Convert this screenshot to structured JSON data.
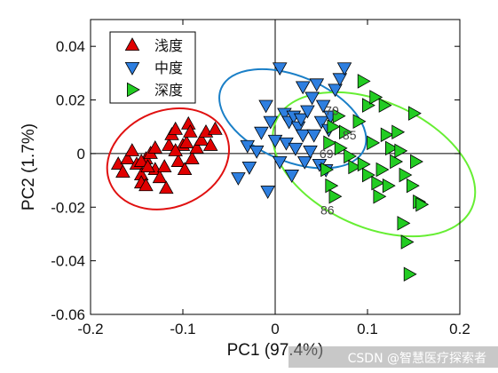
{
  "chart_data": {
    "type": "scatter",
    "xlabel": "PC1 (97.4%)",
    "ylabel": "PC2 (1.7%)",
    "xlim": [
      -0.2,
      0.2
    ],
    "ylim": [
      -0.06,
      0.05
    ],
    "xticks": [
      "-0.2",
      "-0.1",
      "0",
      "0.1",
      "0.2"
    ],
    "yticks": [
      "-0.06",
      "-0.04",
      "-0.02",
      "0",
      "0.02",
      "0.04"
    ],
    "zero_lines": true,
    "legend_position": "top-left",
    "series": [
      {
        "name": "浅度",
        "marker": "triangle-up",
        "color": "#e00000",
        "points": [
          [
            -0.17,
            -0.004
          ],
          [
            -0.165,
            -0.007
          ],
          [
            -0.16,
            -0.002
          ],
          [
            -0.155,
            0.001
          ],
          [
            -0.15,
            -0.004
          ],
          [
            -0.145,
            -0.008
          ],
          [
            -0.14,
            -0.002
          ],
          [
            -0.145,
            -0.011
          ],
          [
            -0.14,
            -0.012
          ],
          [
            -0.135,
            0.0
          ],
          [
            -0.13,
            0.002
          ],
          [
            -0.13,
            -0.006
          ],
          [
            -0.125,
            -0.009
          ],
          [
            -0.12,
            -0.005
          ],
          [
            -0.115,
            0.003
          ],
          [
            -0.112,
            0.007
          ],
          [
            -0.108,
            0.009
          ],
          [
            -0.105,
            -0.003
          ],
          [
            -0.1,
            0.003
          ],
          [
            -0.098,
            -0.006
          ],
          [
            -0.096,
            0.004
          ],
          [
            -0.094,
            0.011
          ],
          [
            -0.092,
            0.008
          ],
          [
            -0.09,
            -0.002
          ],
          [
            -0.085,
            0.002
          ],
          [
            -0.08,
            0.005
          ],
          [
            -0.075,
            0.008
          ],
          [
            -0.07,
            0.003
          ],
          [
            -0.065,
            0.009
          ],
          [
            -0.145,
            -0.003
          ],
          [
            -0.138,
            -0.005
          ],
          [
            -0.118,
            -0.013
          ],
          [
            -0.108,
            0.001
          ]
        ]
      },
      {
        "name": "中度",
        "marker": "triangle-down",
        "color": "#2e7fe0",
        "points": [
          [
            -0.04,
            -0.009
          ],
          [
            -0.03,
            0.003
          ],
          [
            -0.028,
            -0.005
          ],
          [
            -0.02,
            0.001
          ],
          [
            -0.015,
            0.008
          ],
          [
            -0.01,
            0.018
          ],
          [
            -0.008,
            -0.014
          ],
          [
            -0.005,
            0.012
          ],
          [
            0.0,
            0.005
          ],
          [
            0.005,
            -0.003
          ],
          [
            0.005,
            0.032
          ],
          [
            0.01,
            0.015
          ],
          [
            0.012,
            0.004
          ],
          [
            0.015,
            0.012
          ],
          [
            0.018,
            -0.008
          ],
          [
            0.02,
            0.014
          ],
          [
            0.022,
            0.002
          ],
          [
            0.025,
            0.01
          ],
          [
            0.028,
            0.013
          ],
          [
            0.03,
            0.007
          ],
          [
            0.03,
            0.025
          ],
          [
            0.032,
            -0.003
          ],
          [
            0.035,
            0.016
          ],
          [
            0.038,
            0.001
          ],
          [
            0.04,
            0.021
          ],
          [
            0.042,
            0.007
          ],
          [
            0.045,
            0.026
          ],
          [
            0.048,
            -0.004
          ],
          [
            0.05,
            0.012
          ],
          [
            0.052,
            0.018
          ],
          [
            0.055,
            -0.006
          ],
          [
            0.058,
            0.009
          ],
          [
            0.06,
            0.014
          ],
          [
            0.065,
            0.024
          ],
          [
            0.07,
            0.028
          ],
          [
            0.075,
            0.032
          ]
        ]
      },
      {
        "name": "深度",
        "marker": "triangle-right",
        "color": "#22cc22",
        "points": [
          [
            0.055,
            -0.006
          ],
          [
            0.058,
            0.004
          ],
          [
            0.06,
            -0.012
          ],
          [
            0.062,
            0.01
          ],
          [
            0.064,
            -0.016
          ],
          [
            0.068,
            0.014
          ],
          [
            0.07,
            0.002
          ],
          [
            0.075,
            0.008
          ],
          [
            0.08,
            -0.001
          ],
          [
            0.085,
            -0.005
          ],
          [
            0.09,
            0.012
          ],
          [
            0.095,
            -0.004
          ],
          [
            0.095,
            0.027
          ],
          [
            0.1,
            -0.008
          ],
          [
            0.1,
            0.018
          ],
          [
            0.105,
            0.004
          ],
          [
            0.108,
            0.021
          ],
          [
            0.11,
            -0.011
          ],
          [
            0.112,
            -0.016
          ],
          [
            0.115,
            -0.006
          ],
          [
            0.118,
            0.018
          ],
          [
            0.12,
            0.007
          ],
          [
            0.122,
            -0.012
          ],
          [
            0.125,
            0.002
          ],
          [
            0.13,
            -0.003
          ],
          [
            0.132,
            0.008
          ],
          [
            0.135,
            0.001
          ],
          [
            0.138,
            -0.026
          ],
          [
            0.14,
            -0.008
          ],
          [
            0.142,
            -0.033
          ],
          [
            0.145,
            -0.045
          ],
          [
            0.148,
            -0.012
          ],
          [
            0.15,
            0.015
          ],
          [
            0.152,
            -0.003
          ],
          [
            0.155,
            -0.018
          ],
          [
            0.158,
            -0.019
          ]
        ]
      }
    ],
    "ellipses": [
      {
        "series": "浅度",
        "color": "#e01010",
        "cx": -0.116,
        "cy": -0.002,
        "rx": 0.068,
        "ry": 0.018,
        "angle": 22
      },
      {
        "series": "中度",
        "color": "#1a7fc7",
        "cx": 0.019,
        "cy": 0.013,
        "rx": 0.046,
        "ry": 0.029,
        "angle": 67
      },
      {
        "series": "深度",
        "color": "#66ee33",
        "cx": 0.107,
        "cy": -0.004,
        "rx": 0.068,
        "ry": 0.04,
        "angle": 66
      }
    ],
    "annotations": [
      {
        "text": "70",
        "x": 0.054,
        "y": 0.016
      },
      {
        "text": "85",
        "x": 0.073,
        "y": 0.007
      },
      {
        "text": "69",
        "x": 0.048,
        "y": 0.0
      },
      {
        "text": "86",
        "x": 0.049,
        "y": -0.021
      }
    ]
  },
  "watermark": "CSDN @智慧医疗探索者"
}
